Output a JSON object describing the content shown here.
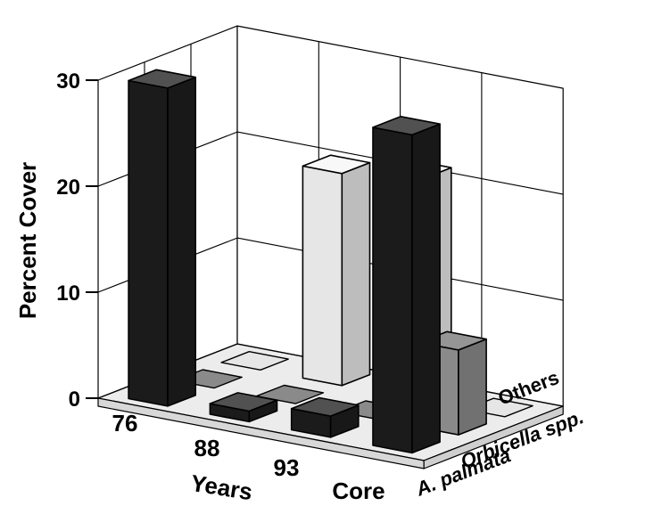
{
  "chart_data": {
    "type": "bar3d",
    "title": "",
    "ylabel": "Percent Cover",
    "xlabel": "Years",
    "ylim": [
      0,
      30
    ],
    "yticks": [
      0,
      10,
      20,
      30
    ],
    "grid": true,
    "categories": [
      "76",
      "88",
      "93",
      "Core"
    ],
    "series": [
      {
        "name": "A. palmata",
        "values": [
          30,
          1,
          2,
          30
        ]
      },
      {
        "name": "Orbicella spp.",
        "values": [
          0,
          0,
          0,
          8
        ]
      },
      {
        "name": "Others",
        "values": [
          0,
          20,
          21,
          0
        ]
      }
    ],
    "colors": {
      "A. palmata": "#1b1b1b",
      "Orbicella spp.": "#8a8a8a",
      "Others": "#e6e6e6"
    }
  }
}
